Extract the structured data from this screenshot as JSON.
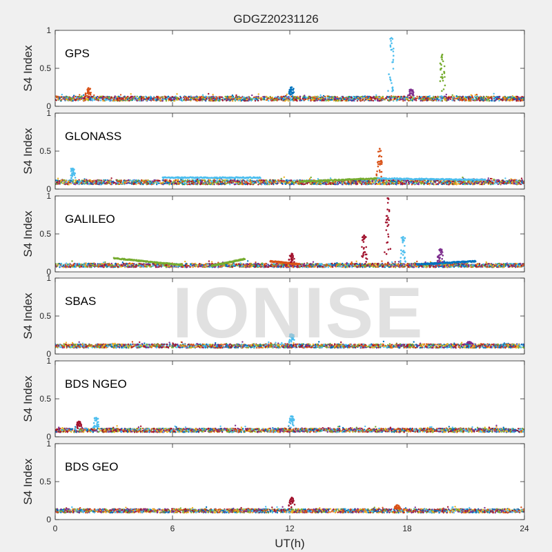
{
  "title": "GDGZ20231126",
  "watermark": "IONISE",
  "colors": [
    "#0072BD",
    "#D95319",
    "#EDB120",
    "#7E2F8E",
    "#77AC30",
    "#4DBEEE",
    "#A2142F"
  ],
  "chart_data": {
    "type": "scatter",
    "title": "GDGZ20231126",
    "xlabel": "UT(h)",
    "ylabel": "S4 Index",
    "xlim": [
      0,
      24
    ],
    "ylim": [
      0,
      1
    ],
    "x_ticks": [
      0,
      6,
      12,
      18,
      24
    ],
    "x_tick_labels": [
      "0",
      "6",
      "12",
      "18",
      "24"
    ],
    "y_ticks": [
      0,
      0.5,
      1
    ],
    "y_tick_labels": [
      "0",
      "0.5",
      "1"
    ],
    "grid": false,
    "panels": [
      {
        "label": "GPS",
        "baseline": [
          0.07,
          0.13
        ],
        "spikes": [
          {
            "x": 1.7,
            "peak": 0.24,
            "color": 1
          },
          {
            "x": 12.1,
            "peak": 0.25,
            "color": 0
          },
          {
            "x": 17.2,
            "peak": 0.9,
            "color": 5
          },
          {
            "x": 18.2,
            "peak": 0.22,
            "color": 3
          },
          {
            "x": 19.8,
            "peak": 0.68,
            "color": 4
          }
        ]
      },
      {
        "label": "GLONASS",
        "baseline": [
          0.06,
          0.12
        ],
        "spikes": [
          {
            "x": 0.9,
            "peak": 0.27,
            "color": 5
          },
          {
            "x": 16.6,
            "peak": 0.53,
            "color": 1
          }
        ],
        "arcs": [
          {
            "x0": 5.5,
            "x1": 10.5,
            "y0": 0.15,
            "y1": 0.15,
            "color": 5
          },
          {
            "x0": 12.5,
            "x1": 16.5,
            "y0": 0.1,
            "y1": 0.14,
            "color": 4
          },
          {
            "x0": 16.5,
            "x1": 22.0,
            "y0": 0.14,
            "y1": 0.12,
            "color": 5
          }
        ]
      },
      {
        "label": "GALILEO",
        "baseline": [
          0.06,
          0.11
        ],
        "spikes": [
          {
            "x": 12.1,
            "peak": 0.24,
            "color": 6
          },
          {
            "x": 15.8,
            "peak": 0.48,
            "color": 6
          },
          {
            "x": 17.0,
            "peak": 0.97,
            "color": 6
          },
          {
            "x": 17.8,
            "peak": 0.46,
            "color": 5
          },
          {
            "x": 19.7,
            "peak": 0.3,
            "color": 3
          }
        ],
        "arcs": [
          {
            "x0": 3.0,
            "x1": 6.5,
            "y0": 0.18,
            "y1": 0.09,
            "color": 4
          },
          {
            "x0": 8.0,
            "x1": 9.7,
            "y0": 0.08,
            "y1": 0.17,
            "color": 4
          },
          {
            "x0": 11.0,
            "x1": 12.5,
            "y0": 0.14,
            "y1": 0.1,
            "color": 1
          },
          {
            "x0": 18.5,
            "x1": 21.5,
            "y0": 0.1,
            "y1": 0.14,
            "color": 0
          }
        ]
      },
      {
        "label": "SBAS",
        "baseline": [
          0.08,
          0.13
        ],
        "spikes": [
          {
            "x": 12.1,
            "peak": 0.26,
            "color": 5
          },
          {
            "x": 21.2,
            "peak": 0.16,
            "color": 3
          }
        ]
      },
      {
        "label": "BDS NGEO",
        "baseline": [
          0.06,
          0.11
        ],
        "spikes": [
          {
            "x": 2.1,
            "peak": 0.25,
            "color": 5
          },
          {
            "x": 1.2,
            "peak": 0.2,
            "color": 6
          },
          {
            "x": 12.1,
            "peak": 0.27,
            "color": 5
          }
        ]
      },
      {
        "label": "BDS GEO",
        "baseline": [
          0.09,
          0.14
        ],
        "spikes": [
          {
            "x": 12.1,
            "peak": 0.29,
            "color": 6
          },
          {
            "x": 17.5,
            "peak": 0.19,
            "color": 1
          }
        ]
      }
    ]
  }
}
